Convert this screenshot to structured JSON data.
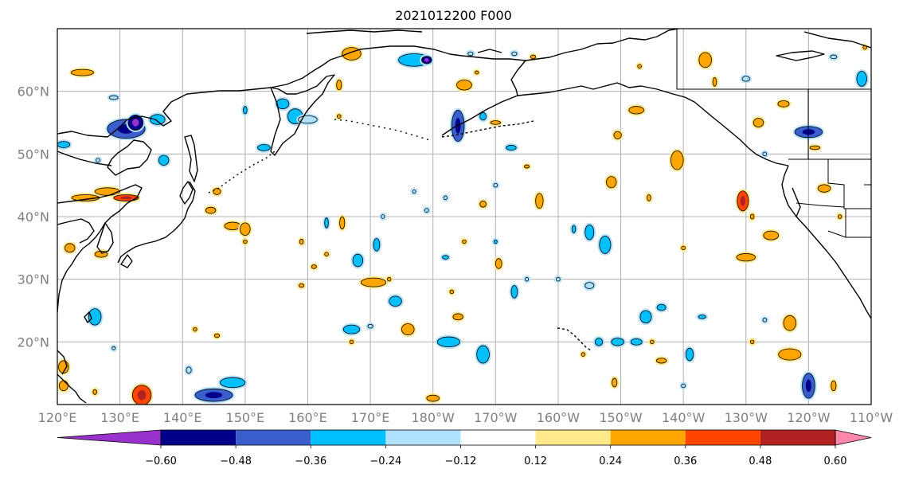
{
  "title": "2021012200 F000",
  "map": {
    "lat_labels": [
      "60°N",
      "50°N",
      "40°N",
      "30°N",
      "20°N"
    ],
    "lon_labels": [
      "120°E",
      "130°E",
      "140°E",
      "150°E",
      "160°E",
      "170°E",
      "180°W",
      "170°W",
      "160°W",
      "150°W",
      "140°W",
      "130°W",
      "120°W",
      "110°W"
    ],
    "extent": {
      "lon_min": 120,
      "lon_max": 250,
      "lat_min": 10,
      "lat_max": 70
    },
    "grid": true
  },
  "colorbar": {
    "ticks": [
      "−0.60",
      "−0.48",
      "−0.36",
      "−0.24",
      "−0.12",
      "0.12",
      "0.24",
      "0.36",
      "0.48",
      "0.60"
    ],
    "colors": [
      "#9932cc",
      "#00008b",
      "#3a5fcd",
      "#00bfff",
      "#b0e2ff",
      "#ffffff",
      "#ffe98b",
      "#ffa500",
      "#ff4500",
      "#b22222",
      "#ff88aa"
    ]
  },
  "blobs": [
    {
      "lon": 124,
      "lat": 63,
      "rx": 1.8,
      "ry": 0.5,
      "v": 0.3
    },
    {
      "lon": 129,
      "lat": 59,
      "rx": 0.7,
      "ry": 0.3,
      "v": -0.2
    },
    {
      "lon": 131,
      "lat": 54,
      "rx": 3,
      "ry": 1.5,
      "v": -0.4
    },
    {
      "lon": 132.5,
      "lat": 55,
      "rx": 1.2,
      "ry": 1.2,
      "v": -0.5
    },
    {
      "lon": 121,
      "lat": 51.5,
      "rx": 1,
      "ry": 0.5,
      "v": -0.3
    },
    {
      "lon": 136,
      "lat": 55.5,
      "rx": 1.2,
      "ry": 0.8,
      "v": -0.35
    },
    {
      "lon": 137,
      "lat": 49,
      "rx": 0.8,
      "ry": 0.8,
      "v": -0.3
    },
    {
      "lon": 126.5,
      "lat": 49,
      "rx": 0.3,
      "ry": 0.3,
      "v": -0.2
    },
    {
      "lon": 124.5,
      "lat": 43,
      "rx": 2.2,
      "ry": 0.5,
      "v": 0.3
    },
    {
      "lon": 128,
      "lat": 44,
      "rx": 2,
      "ry": 0.6,
      "v": 0.35
    },
    {
      "lon": 131,
      "lat": 43,
      "rx": 2,
      "ry": 0.5,
      "v": 0.4
    },
    {
      "lon": 122,
      "lat": 35,
      "rx": 0.8,
      "ry": 0.7,
      "v": 0.3
    },
    {
      "lon": 127,
      "lat": 34,
      "rx": 1,
      "ry": 0.5,
      "v": 0.3
    },
    {
      "lon": 126,
      "lat": 24,
      "rx": 1,
      "ry": 1.3,
      "v": -0.35
    },
    {
      "lon": 121,
      "lat": 16,
      "rx": 0.8,
      "ry": 1,
      "v": 0.3
    },
    {
      "lon": 121,
      "lat": 13,
      "rx": 0.7,
      "ry": 0.8,
      "v": 0.3
    },
    {
      "lon": 126,
      "lat": 12,
      "rx": 0.3,
      "ry": 0.4,
      "v": 0.25
    },
    {
      "lon": 129,
      "lat": 19,
      "rx": 0.2,
      "ry": 0.2,
      "v": -0.2
    },
    {
      "lon": 133.5,
      "lat": 11.5,
      "rx": 1.5,
      "ry": 1.6,
      "v": 0.4
    },
    {
      "lon": 145,
      "lat": 11.5,
      "rx": 3,
      "ry": 1,
      "v": -0.4
    },
    {
      "lon": 148,
      "lat": 13.5,
      "rx": 2,
      "ry": 0.8,
      "v": -0.35
    },
    {
      "lon": 141,
      "lat": 15.5,
      "rx": 0.4,
      "ry": 0.5,
      "v": -0.2
    },
    {
      "lon": 145.5,
      "lat": 44,
      "rx": 0.6,
      "ry": 0.5,
      "v": 0.3
    },
    {
      "lon": 144.5,
      "lat": 41,
      "rx": 0.8,
      "ry": 0.5,
      "v": 0.3
    },
    {
      "lon": 148,
      "lat": 38.5,
      "rx": 1.3,
      "ry": 0.6,
      "v": 0.3
    },
    {
      "lon": 150,
      "lat": 38,
      "rx": 0.8,
      "ry": 1,
      "v": 0.3
    },
    {
      "lon": 150,
      "lat": 36,
      "rx": 0.3,
      "ry": 0.3,
      "v": 0.25
    },
    {
      "lon": 142,
      "lat": 22,
      "rx": 0.3,
      "ry": 0.3,
      "v": 0.3
    },
    {
      "lon": 145.5,
      "lat": 21,
      "rx": 0.4,
      "ry": 0.3,
      "v": 0.3
    },
    {
      "lon": 150,
      "lat": 57,
      "rx": 0.3,
      "ry": 0.6,
      "v": -0.25
    },
    {
      "lon": 153,
      "lat": 51,
      "rx": 1,
      "ry": 0.5,
      "v": -0.3
    },
    {
      "lon": 156,
      "lat": 58,
      "rx": 1,
      "ry": 0.8,
      "v": -0.3
    },
    {
      "lon": 158,
      "lat": 56,
      "rx": 1.2,
      "ry": 1.2,
      "v": -0.35
    },
    {
      "lon": 160,
      "lat": 55.5,
      "rx": 1.5,
      "ry": 0.6,
      "v": -0.2
    },
    {
      "lon": 163,
      "lat": 39,
      "rx": 0.3,
      "ry": 0.8,
      "v": -0.3
    },
    {
      "lon": 165.5,
      "lat": 39,
      "rx": 0.4,
      "ry": 1,
      "v": 0.3
    },
    {
      "lon": 159,
      "lat": 36,
      "rx": 0.3,
      "ry": 0.4,
      "v": 0.3
    },
    {
      "lon": 161,
      "lat": 32,
      "rx": 0.4,
      "ry": 0.3,
      "v": 0.3
    },
    {
      "lon": 159,
      "lat": 29,
      "rx": 0.4,
      "ry": 0.3,
      "v": 0.3
    },
    {
      "lon": 163,
      "lat": 34,
      "rx": 0.3,
      "ry": 0.3,
      "v": 0.3
    },
    {
      "lon": 167,
      "lat": 66,
      "rx": 1.5,
      "ry": 1,
      "v": 0.35
    },
    {
      "lon": 165,
      "lat": 61,
      "rx": 0.4,
      "ry": 0.8,
      "v": 0.3
    },
    {
      "lon": 165,
      "lat": 56,
      "rx": 0.3,
      "ry": 0.3,
      "v": 0.3
    },
    {
      "lon": 168,
      "lat": 33,
      "rx": 0.8,
      "ry": 1,
      "v": -0.3
    },
    {
      "lon": 170.5,
      "lat": 29.5,
      "rx": 2,
      "ry": 0.7,
      "v": 0.35
    },
    {
      "lon": 173,
      "lat": 30,
      "rx": 0.3,
      "ry": 0.3,
      "v": 0.25
    },
    {
      "lon": 171,
      "lat": 35.5,
      "rx": 0.5,
      "ry": 1,
      "v": -0.3
    },
    {
      "lon": 172,
      "lat": 40,
      "rx": 0.2,
      "ry": 0.3,
      "v": -0.2
    },
    {
      "lon": 174,
      "lat": 26.5,
      "rx": 1,
      "ry": 0.8,
      "v": -0.3
    },
    {
      "lon": 167,
      "lat": 22,
      "rx": 1.3,
      "ry": 0.7,
      "v": -0.35
    },
    {
      "lon": 170,
      "lat": 22.5,
      "rx": 0.4,
      "ry": 0.3,
      "v": -0.2
    },
    {
      "lon": 176,
      "lat": 22,
      "rx": 1,
      "ry": 0.9,
      "v": 0.35
    },
    {
      "lon": 182.5,
      "lat": 20,
      "rx": 1.8,
      "ry": 0.8,
      "v": -0.35
    },
    {
      "lon": 184,
      "lat": 24,
      "rx": 0.8,
      "ry": 0.5,
      "v": 0.35
    },
    {
      "lon": 183,
      "lat": 28,
      "rx": 0.3,
      "ry": 0.3,
      "v": 0.25
    },
    {
      "lon": 182,
      "lat": 33.5,
      "rx": 0.5,
      "ry": 0.3,
      "v": -0.25
    },
    {
      "lon": 185,
      "lat": 36,
      "rx": 0.3,
      "ry": 0.3,
      "v": 0.25
    },
    {
      "lon": 167,
      "lat": 20,
      "rx": 0.3,
      "ry": 0.3,
      "v": 0.25
    },
    {
      "lon": 177,
      "lat": 65,
      "rx": 2.5,
      "ry": 1,
      "v": -0.35
    },
    {
      "lon": 179,
      "lat": 65,
      "rx": 0.8,
      "ry": 0.6,
      "v": -0.5
    },
    {
      "lon": 185,
      "lat": 61,
      "rx": 1.2,
      "ry": 0.8,
      "v": 0.35
    },
    {
      "lon": 184,
      "lat": 54.5,
      "rx": 1,
      "ry": 2.5,
      "v": -0.4
    },
    {
      "lon": 188,
      "lat": 56,
      "rx": 0.5,
      "ry": 0.6,
      "v": -0.25
    },
    {
      "lon": 187,
      "lat": 63,
      "rx": 0.3,
      "ry": 0.2,
      "v": 0.25
    },
    {
      "lon": 186,
      "lat": 66,
      "rx": 0.4,
      "ry": 0.3,
      "v": -0.2
    },
    {
      "lon": 182,
      "lat": 43,
      "rx": 0.2,
      "ry": 0.3,
      "v": -0.2
    },
    {
      "lon": 179,
      "lat": 41,
      "rx": 0.3,
      "ry": 0.3,
      "v": -0.2
    },
    {
      "lon": 180,
      "lat": 11,
      "rx": 1,
      "ry": 0.5,
      "v": 0.35
    },
    {
      "lon": 177,
      "lat": 44,
      "rx": 0.2,
      "ry": 0.2,
      "v": -0.2
    },
    {
      "lon": 190,
      "lat": 36,
      "rx": 0.2,
      "ry": 0.3,
      "v": -0.25
    },
    {
      "lon": 190.5,
      "lat": 32.5,
      "rx": 0.5,
      "ry": 0.8,
      "v": 0.3
    },
    {
      "lon": 196,
      "lat": 65.5,
      "rx": 0.4,
      "ry": 0.3,
      "v": 0.25
    },
    {
      "lon": 193,
      "lat": 66,
      "rx": 0.4,
      "ry": 0.3,
      "v": -0.2
    },
    {
      "lon": 190,
      "lat": 55,
      "rx": 0.8,
      "ry": 0.3,
      "v": 0.3
    },
    {
      "lon": 192.5,
      "lat": 51,
      "rx": 0.8,
      "ry": 0.4,
      "v": -0.25
    },
    {
      "lon": 188,
      "lat": 42,
      "rx": 0.5,
      "ry": 0.5,
      "v": 0.3
    },
    {
      "lon": 190,
      "lat": 45,
      "rx": 0.3,
      "ry": 0.3,
      "v": -0.2
    },
    {
      "lon": 188,
      "lat": 18,
      "rx": 1,
      "ry": 1.4,
      "v": -0.35
    },
    {
      "lon": 197,
      "lat": 42.5,
      "rx": 0.6,
      "ry": 1.2,
      "v": 0.35
    },
    {
      "lon": 195,
      "lat": 48,
      "rx": 0.4,
      "ry": 0.2,
      "v": 0.25
    },
    {
      "lon": 195,
      "lat": 30,
      "rx": 0.2,
      "ry": 0.3,
      "v": -0.2
    },
    {
      "lon": 193,
      "lat": 28,
      "rx": 0.5,
      "ry": 1,
      "v": -0.3
    },
    {
      "lon": 202.5,
      "lat": 38,
      "rx": 0.3,
      "ry": 0.6,
      "v": -0.25
    },
    {
      "lon": 205,
      "lat": 37.5,
      "rx": 0.7,
      "ry": 1.2,
      "v": -0.35
    },
    {
      "lon": 207.5,
      "lat": 35.5,
      "rx": 0.9,
      "ry": 1.4,
      "v": -0.35
    },
    {
      "lon": 205,
      "lat": 29,
      "rx": 0.7,
      "ry": 0.5,
      "v": -0.2
    },
    {
      "lon": 200,
      "lat": 30,
      "rx": 0.3,
      "ry": 0.3,
      "v": -0.2
    },
    {
      "lon": 204,
      "lat": 18,
      "rx": 0.3,
      "ry": 0.3,
      "v": 0.25
    },
    {
      "lon": 208.5,
      "lat": 45.5,
      "rx": 0.8,
      "ry": 0.9,
      "v": 0.35
    },
    {
      "lon": 209.5,
      "lat": 53,
      "rx": 0.6,
      "ry": 0.6,
      "v": 0.3
    },
    {
      "lon": 206.5,
      "lat": 20,
      "rx": 0.6,
      "ry": 0.6,
      "v": -0.25
    },
    {
      "lon": 209.5,
      "lat": 20,
      "rx": 1,
      "ry": 0.6,
      "v": -0.3
    },
    {
      "lon": 212.5,
      "lat": 20,
      "rx": 0.9,
      "ry": 0.5,
      "v": -0.25
    },
    {
      "lon": 209,
      "lat": 13.5,
      "rx": 0.4,
      "ry": 0.7,
      "v": 0.35
    },
    {
      "lon": 212.5,
      "lat": 57,
      "rx": 1.2,
      "ry": 0.6,
      "v": 0.35
    },
    {
      "lon": 213,
      "lat": 64,
      "rx": 0.3,
      "ry": 0.3,
      "v": 0.25
    },
    {
      "lon": 214.5,
      "lat": 43,
      "rx": 0.3,
      "ry": 0.5,
      "v": 0.3
    },
    {
      "lon": 214,
      "lat": 24,
      "rx": 0.9,
      "ry": 1,
      "v": -0.35
    },
    {
      "lon": 216.5,
      "lat": 25.5,
      "rx": 0.7,
      "ry": 0.5,
      "v": -0.25
    },
    {
      "lon": 215,
      "lat": 20,
      "rx": 0.3,
      "ry": 0.3,
      "v": 0.3
    },
    {
      "lon": 216.5,
      "lat": 17,
      "rx": 0.8,
      "ry": 0.4,
      "v": 0.35
    },
    {
      "lon": 219,
      "lat": 49,
      "rx": 1,
      "ry": 1.5,
      "v": 0.35
    },
    {
      "lon": 220,
      "lat": 35,
      "rx": 0.3,
      "ry": 0.3,
      "v": 0.3
    },
    {
      "lon": 220,
      "lat": 13,
      "rx": 0.3,
      "ry": 0.3,
      "v": -0.2
    },
    {
      "lon": 221,
      "lat": 18,
      "rx": 0.6,
      "ry": 1,
      "v": -0.3
    },
    {
      "lon": 223,
      "lat": 24,
      "rx": 0.6,
      "ry": 0.3,
      "v": -0.25
    },
    {
      "lon": 223.5,
      "lat": 65,
      "rx": 1,
      "ry": 1.2,
      "v": 0.35
    },
    {
      "lon": 225,
      "lat": 61.5,
      "rx": 0.3,
      "ry": 0.7,
      "v": 0.3
    },
    {
      "lon": 230,
      "lat": 62,
      "rx": 0.6,
      "ry": 0.4,
      "v": -0.2
    },
    {
      "lon": 229.5,
      "lat": 42.5,
      "rx": 0.9,
      "ry": 1.6,
      "v": 0.4
    },
    {
      "lon": 231,
      "lat": 40,
      "rx": 0.3,
      "ry": 0.4,
      "v": 0.25
    },
    {
      "lon": 230,
      "lat": 33.5,
      "rx": 1.5,
      "ry": 0.6,
      "v": 0.35
    },
    {
      "lon": 232,
      "lat": 55,
      "rx": 0.8,
      "ry": 0.7,
      "v": 0.35
    },
    {
      "lon": 236,
      "lat": 58,
      "rx": 0.9,
      "ry": 0.5,
      "v": 0.35
    },
    {
      "lon": 234,
      "lat": 37,
      "rx": 1.2,
      "ry": 0.7,
      "v": 0.35
    },
    {
      "lon": 231,
      "lat": 20,
      "rx": 0.3,
      "ry": 0.3,
      "v": 0.25
    },
    {
      "lon": 233,
      "lat": 23.5,
      "rx": 0.3,
      "ry": 0.3,
      "v": -0.2
    },
    {
      "lon": 237,
      "lat": 23,
      "rx": 1,
      "ry": 1.2,
      "v": 0.35
    },
    {
      "lon": 237,
      "lat": 18,
      "rx": 1.8,
      "ry": 0.9,
      "v": 0.35
    },
    {
      "lon": 233,
      "lat": 50,
      "rx": 0.3,
      "ry": 0.3,
      "v": -0.2
    },
    {
      "lon": 240,
      "lat": 53.5,
      "rx": 2.2,
      "ry": 0.9,
      "v": -0.4
    },
    {
      "lon": 241,
      "lat": 51,
      "rx": 0.8,
      "ry": 0.3,
      "v": 0.3
    },
    {
      "lon": 242.5,
      "lat": 44.5,
      "rx": 1,
      "ry": 0.6,
      "v": 0.3
    },
    {
      "lon": 245,
      "lat": 40,
      "rx": 0.3,
      "ry": 0.3,
      "v": 0.25
    },
    {
      "lon": 240,
      "lat": 13,
      "rx": 1,
      "ry": 2,
      "v": -0.45
    },
    {
      "lon": 244,
      "lat": 13,
      "rx": 0.4,
      "ry": 0.8,
      "v": 0.3
    },
    {
      "lon": 248.5,
      "lat": 62,
      "rx": 0.8,
      "ry": 1.2,
      "v": -0.35
    },
    {
      "lon": 244,
      "lat": 65.5,
      "rx": 0.5,
      "ry": 0.3,
      "v": -0.2
    },
    {
      "lon": 249,
      "lat": 67,
      "rx": 0.3,
      "ry": 0.3,
      "v": 0.25
    }
  ]
}
